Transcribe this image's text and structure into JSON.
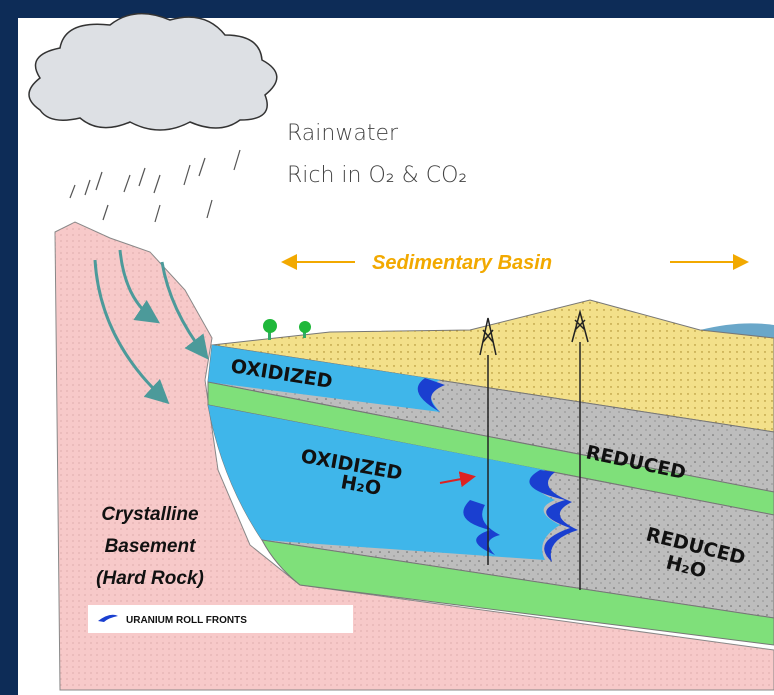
{
  "labels": {
    "rain": [
      "Rainwater",
      "Rich in O₂ & CO₂"
    ],
    "basin": "Sedimentary Basin",
    "upper_oxidized": "OXIDIZED",
    "lower_oxidized": [
      "OXIDIZED",
      "H₂O"
    ],
    "upper_reduced": "REDUCED",
    "lower_reduced": [
      "REDUCED",
      "H₂O"
    ],
    "basement": [
      "Crystalline",
      "Basement",
      "(Hard Rock)"
    ],
    "legend": "URANIUM ROLL FRONTS"
  }
}
